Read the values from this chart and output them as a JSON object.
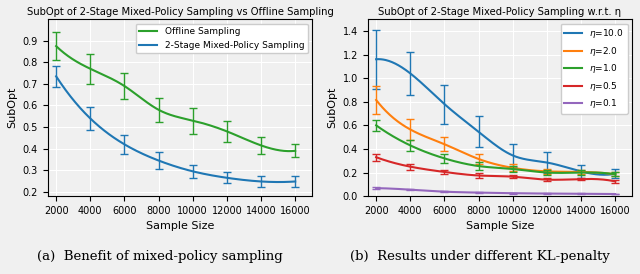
{
  "plot1": {
    "title": "SubOpt of 2-Stage Mixed-Policy Sampling vs Offline Sampling",
    "xlabel": "Sample Size",
    "ylabel": "SubOpt",
    "x": [
      2000,
      4000,
      6000,
      8000,
      10000,
      12000,
      14000,
      16000
    ],
    "offline": {
      "y": [
        0.875,
        0.77,
        0.69,
        0.58,
        0.53,
        0.48,
        0.415,
        0.39
      ],
      "yerr": [
        0.065,
        0.07,
        0.06,
        0.055,
        0.06,
        0.05,
        0.04,
        0.03
      ],
      "color": "#2ca02c",
      "label": "Offline Sampling"
    },
    "mixed": {
      "y": [
        0.735,
        0.54,
        0.42,
        0.345,
        0.295,
        0.265,
        0.248,
        0.248
      ],
      "yerr": [
        0.05,
        0.055,
        0.045,
        0.04,
        0.03,
        0.025,
        0.025,
        0.025
      ],
      "color": "#1f77b4",
      "label": "2-Stage Mixed-Policy Sampling"
    },
    "xlim": [
      1500,
      17000
    ],
    "ylim": [
      0.18,
      1.0
    ],
    "yticks": [
      0.2,
      0.3,
      0.4,
      0.5,
      0.6,
      0.7,
      0.8,
      0.9
    ]
  },
  "plot2": {
    "title": "SubOpt of 2-Stage Mixed-Policy Sampling w.r.t. η",
    "xlabel": "Sample Size",
    "ylabel": "SubOpt",
    "x": [
      2000,
      4000,
      6000,
      8000,
      10000,
      12000,
      14000,
      16000
    ],
    "series": [
      {
        "eta": "10.0",
        "y": [
          1.16,
          1.04,
          0.78,
          0.545,
          0.345,
          0.285,
          0.21,
          0.19
        ],
        "yerr": [
          0.25,
          0.185,
          0.165,
          0.13,
          0.095,
          0.085,
          0.055,
          0.04
        ],
        "color": "#1f77b4"
      },
      {
        "eta": "2.0",
        "y": [
          0.815,
          0.565,
          0.44,
          0.315,
          0.24,
          0.21,
          0.205,
          0.185
        ],
        "yerr": [
          0.115,
          0.085,
          0.06,
          0.045,
          0.03,
          0.02,
          0.02,
          0.018
        ],
        "color": "#ff7f0e"
      },
      {
        "eta": "1.0",
        "y": [
          0.6,
          0.43,
          0.32,
          0.255,
          0.23,
          0.2,
          0.2,
          0.185
        ],
        "yerr": [
          0.045,
          0.045,
          0.04,
          0.035,
          0.025,
          0.02,
          0.02,
          0.018
        ],
        "color": "#2ca02c"
      },
      {
        "eta": "0.5",
        "y": [
          0.33,
          0.25,
          0.205,
          0.175,
          0.165,
          0.14,
          0.145,
          0.125
        ],
        "yerr": [
          0.03,
          0.025,
          0.02,
          0.018,
          0.015,
          0.015,
          0.012,
          0.012
        ],
        "color": "#d62728"
      },
      {
        "eta": "0.1",
        "y": [
          0.068,
          0.055,
          0.038,
          0.03,
          0.025,
          0.022,
          0.02,
          0.018
        ],
        "yerr": [
          0.008,
          0.006,
          0.005,
          0.004,
          0.003,
          0.003,
          0.003,
          0.003
        ],
        "color": "#9467bd"
      }
    ],
    "xlim": [
      1500,
      17000
    ],
    "ylim": [
      0.0,
      1.5
    ],
    "yticks": [
      0.0,
      0.2,
      0.4,
      0.6,
      0.8,
      1.0,
      1.2,
      1.4
    ]
  },
  "caption1": "(a)  Benefit of mixed-policy sampling",
  "caption2": "(b)  Results under different KL-penalty",
  "bg_color": "#f0f0f0",
  "axes_bg": "#f0f0f0",
  "grid_color": "#ffffff"
}
